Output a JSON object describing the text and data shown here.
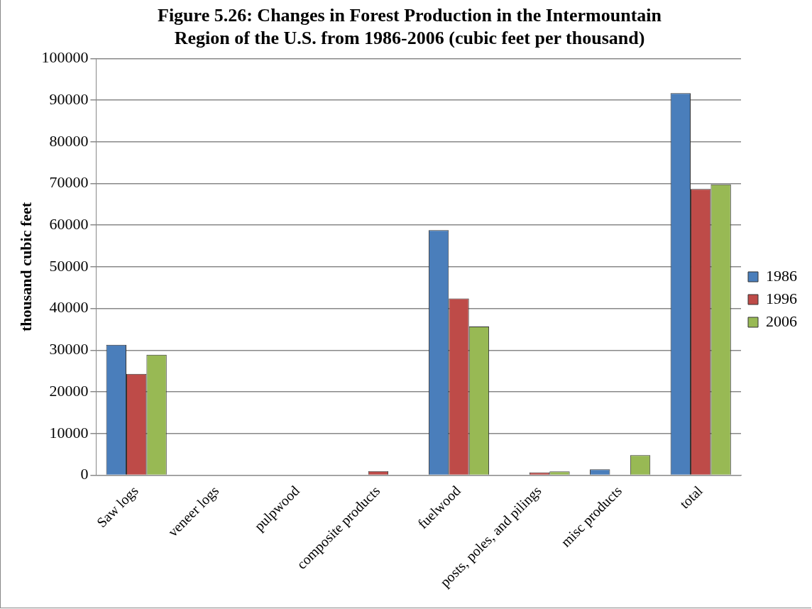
{
  "chart_data": {
    "type": "bar",
    "title": [
      "Figure 5.26: Changes in Forest Production in the Intermountain",
      "Region of the U.S. from 1986-2006 (cubic feet per thousand)"
    ],
    "ylabel": "thousand cubic feet",
    "categories": [
      "Saw logs",
      "veneer logs",
      "pulpwood",
      "composite products",
      "fuelwood",
      "posts, poles, and pilings",
      "misc products",
      "total"
    ],
    "series": [
      {
        "name": "1986",
        "color": "#4a7ebb",
        "values": [
          31300,
          null,
          null,
          0,
          58800,
          0,
          1400,
          91700
        ]
      },
      {
        "name": "1996",
        "color": "#be4b48",
        "values": [
          24300,
          null,
          0,
          1000,
          42400,
          700,
          null,
          68700
        ]
      },
      {
        "name": "2006",
        "color": "#98b954",
        "values": [
          28900,
          0,
          0,
          0,
          35700,
          900,
          4800,
          69800
        ]
      }
    ],
    "ylim": [
      0,
      100000
    ],
    "yticks": [
      0,
      10000,
      20000,
      30000,
      40000,
      50000,
      60000,
      70000,
      80000,
      90000,
      100000
    ],
    "grid": "y",
    "legend": "right"
  }
}
